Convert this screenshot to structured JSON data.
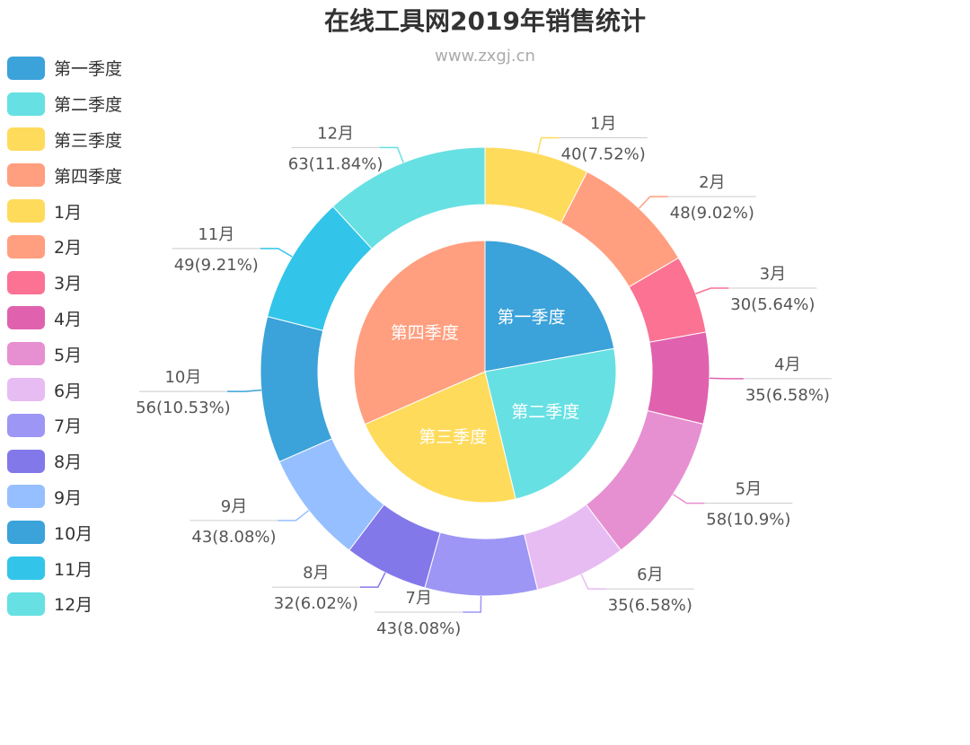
{
  "chart_data": {
    "type": "pie",
    "title": "在线工具网2019年销售统计",
    "subtitle": "www.zxgj.cn",
    "legend_position": "left",
    "inner": {
      "categories": [
        "第一季度",
        "第二季度",
        "第三季度",
        "第四季度"
      ],
      "values": [
        118,
        128,
        118,
        168
      ],
      "colors": [
        "#3ba2da",
        "#67e0e3",
        "#ffdb5c",
        "#ff9f7f"
      ]
    },
    "outer": {
      "categories": [
        "1月",
        "2月",
        "3月",
        "4月",
        "5月",
        "6月",
        "7月",
        "8月",
        "9月",
        "10月",
        "11月",
        "12月"
      ],
      "values": [
        40,
        48,
        30,
        35,
        58,
        35,
        43,
        32,
        43,
        56,
        49,
        63
      ],
      "labels": [
        "40(7.52%)",
        "48(9.02%)",
        "30(5.64%)",
        "35(6.58%)",
        "58(10.9%)",
        "35(6.58%)",
        "43(8.08%)",
        "32(6.02%)",
        "43(8.08%)",
        "56(10.53%)",
        "49(9.21%)",
        "63(11.84%)"
      ],
      "colors": [
        "#ffdb5c",
        "#ff9f7f",
        "#fb7293",
        "#e062ae",
        "#e690d1",
        "#e7bcf3",
        "#9d96f5",
        "#8378ea",
        "#96bfff",
        "#3ba2da",
        "#32c5e9",
        "#67e0e3"
      ]
    }
  }
}
